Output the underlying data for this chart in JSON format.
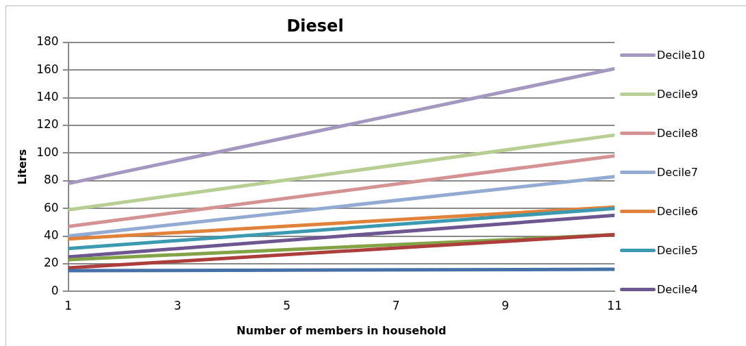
{
  "chart_data": {
    "type": "line",
    "title": "Diesel",
    "xlabel": "Number of members in household",
    "ylabel": "Liters",
    "x": [
      1,
      11
    ],
    "xlim": [
      1,
      11
    ],
    "xticks": [
      1,
      3,
      5,
      7,
      9,
      11
    ],
    "ylim": [
      0,
      180
    ],
    "yticks": [
      0,
      20,
      40,
      60,
      80,
      100,
      120,
      140,
      160,
      180
    ],
    "grid": "y",
    "legend": "right",
    "marker": "none",
    "line_style": "solid",
    "series": [
      {
        "name": "Decile10",
        "color": "#a598c0",
        "values": [
          78,
          161
        ]
      },
      {
        "name": "Decile9",
        "color": "#b8cf93",
        "values": [
          59,
          113
        ]
      },
      {
        "name": "Decile8",
        "color": "#d59292",
        "values": [
          47,
          98
        ]
      },
      {
        "name": "Decile7",
        "color": "#93aad2",
        "values": [
          40,
          83
        ]
      },
      {
        "name": "Decile6",
        "color": "#e0823a",
        "values": [
          38,
          61
        ]
      },
      {
        "name": "Decile5",
        "color": "#3c9ab0",
        "values": [
          31,
          60
        ]
      },
      {
        "name": "Decile4",
        "color": "#6e5790",
        "values": [
          25,
          55
        ]
      },
      {
        "color": "#82a447",
        "values": [
          23,
          41
        ]
      },
      {
        "color": "#ac3f3c",
        "values": [
          17,
          41
        ]
      },
      {
        "color": "#4670a8",
        "values": [
          15,
          16
        ]
      }
    ]
  }
}
